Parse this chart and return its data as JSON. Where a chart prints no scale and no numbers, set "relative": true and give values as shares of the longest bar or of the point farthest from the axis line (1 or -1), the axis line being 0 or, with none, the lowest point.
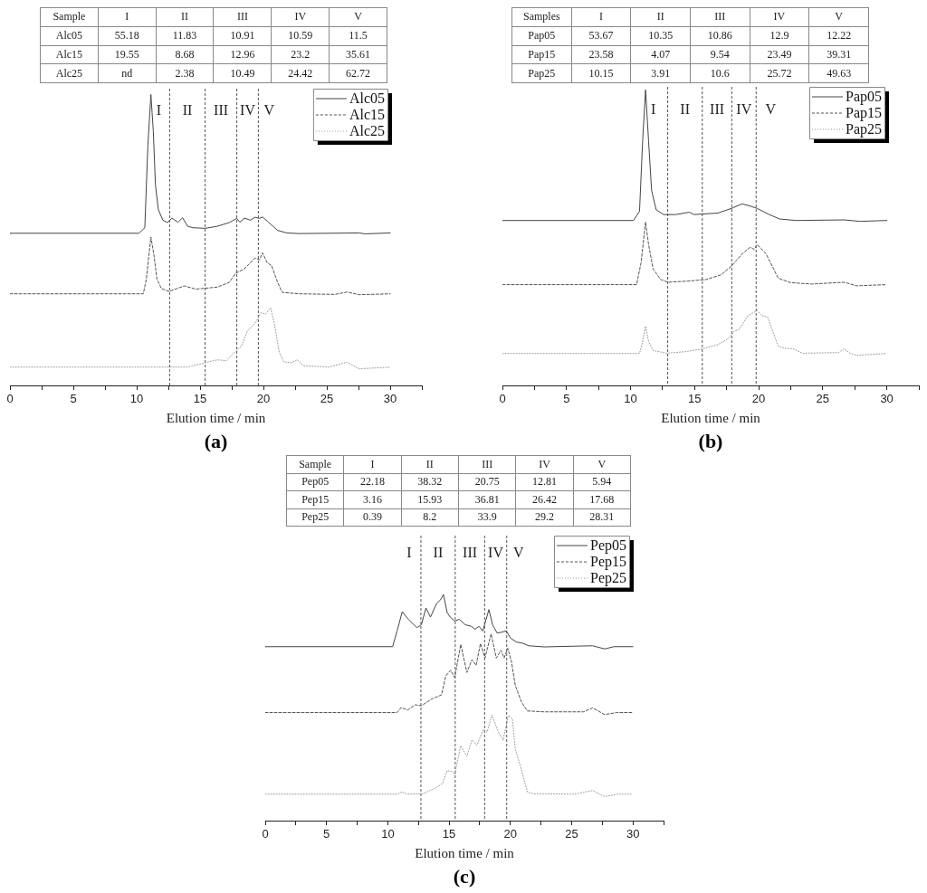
{
  "chart_data": [
    {
      "type": "other",
      "ylabel": "Sample",
      "categories": [
        "I",
        "II",
        "III",
        "IV",
        "V"
      ],
      "data_labels": true,
      "series": [
        {
          "name": "Alc05",
          "values": [
            55.18,
            11.83,
            10.91,
            10.59,
            11.5
          ]
        },
        {
          "name": "Alc15",
          "values": [
            19.55,
            8.68,
            12.96,
            23.2,
            35.61
          ]
        },
        {
          "name": "Alc25",
          "values": [
            null,
            2.38,
            10.49,
            24.42,
            62.72
          ],
          "value_labels": [
            "nd",
            "2.38",
            "10.49",
            "24.42",
            "62.72"
          ]
        }
      ]
    },
    {
      "type": "line",
      "title": "(a)",
      "xlabel": "Elution time / min",
      "relative": true,
      "tick_labels": "x",
      "legend": "top right",
      "xlim": [
        0,
        32.5
      ],
      "xticks": [
        0,
        {
          "value": 2.5,
          "label": null
        },
        5,
        {
          "value": 7.5,
          "label": null
        },
        10,
        {
          "value": 12.5,
          "label": null
        },
        15,
        {
          "value": 17.5,
          "label": null
        },
        20,
        {
          "value": 22.5,
          "label": null
        },
        25,
        {
          "value": 27.5,
          "label": null
        },
        30,
        {
          "value": 32.5,
          "label": null
        }
      ],
      "ref_lines": [
        {
          "axis": "x",
          "value": 12.6,
          "color": "#555555",
          "line_style": "dashed"
        },
        {
          "axis": "x",
          "value": 15.4,
          "color": "#555555",
          "line_style": "dashed"
        },
        {
          "axis": "x",
          "value": 17.9,
          "color": "#555555",
          "line_style": "dashed"
        },
        {
          "axis": "x",
          "value": 19.6,
          "color": "#555555",
          "line_style": "dashed"
        }
      ],
      "annotations": [
        "I",
        "II",
        "III",
        "IV",
        "V"
      ],
      "series": [
        {
          "name": "Alc05",
          "color": "#444444",
          "line_style": "solid",
          "x": [
            0,
            10.17,
            10.64,
            10.88,
            11.12,
            11.31,
            11.48,
            11.71,
            12.07,
            12.43,
            12.79,
            13.26,
            13.62,
            14.02,
            14.45,
            15.41,
            16.36,
            17.31,
            17.9,
            18.14,
            18.5,
            18.98,
            19.33,
            19.69,
            19.93,
            20.4,
            21.12,
            21.84,
            22.79,
            27.55,
            28.02,
            30
          ],
          "values": [
            0.523,
            0.523,
            0.542,
            0.823,
            1,
            0.875,
            0.688,
            0.604,
            0.568,
            0.56,
            0.575,
            0.561,
            0.576,
            0.547,
            0.542,
            0.54,
            0.547,
            0.56,
            0.574,
            0.561,
            0.575,
            0.568,
            0.578,
            0.574,
            0.579,
            0.561,
            0.533,
            0.524,
            0.522,
            0.524,
            0.521,
            0.524
          ]
        },
        {
          "name": "Alc15",
          "color": "#555555",
          "line_style": "dashed",
          "x": [
            0,
            10.52,
            10.76,
            11.12,
            11.36,
            11.6,
            11.95,
            12.55,
            13.74,
            14.69,
            16.36,
            17.31,
            17.79,
            18.5,
            19.33,
            19.69,
            19.93,
            20.29,
            20.64,
            21.12,
            21.48,
            22.79,
            25.64,
            26.6,
            27.55,
            30
          ],
          "values": [
            0.315,
            0.315,
            0.365,
            0.51,
            0.448,
            0.365,
            0.333,
            0.323,
            0.342,
            0.331,
            0.338,
            0.354,
            0.385,
            0.401,
            0.438,
            0.432,
            0.456,
            0.422,
            0.412,
            0.354,
            0.32,
            0.315,
            0.313,
            0.321,
            0.312,
            0.315
          ]
        },
        {
          "name": "Alc25",
          "color": "#999999",
          "line_style": "dotted",
          "x": [
            0,
            13.98,
            15.41,
            16.36,
            17.07,
            17.79,
            18.26,
            18.74,
            19.33,
            19.81,
            20.17,
            20.57,
            20.88,
            21.24,
            21.6,
            22.19,
            22.67,
            23.14,
            25.17,
            26.6,
            27.55,
            30
          ],
          "values": [
            0.063,
            0.063,
            0.078,
            0.088,
            0.085,
            0.117,
            0.135,
            0.188,
            0.213,
            0.25,
            0.245,
            0.266,
            0.208,
            0.115,
            0.081,
            0.078,
            0.088,
            0.068,
            0.063,
            0.08,
            0.057,
            0.063
          ]
        }
      ]
    },
    {
      "type": "other",
      "ylabel": "Samples",
      "categories": [
        "I",
        "II",
        "III",
        "IV",
        "V"
      ],
      "data_labels": true,
      "series": [
        {
          "name": "Pap05",
          "values": [
            53.67,
            10.35,
            10.86,
            12.9,
            12.22
          ]
        },
        {
          "name": "Pap15",
          "values": [
            23.58,
            4.07,
            9.54,
            23.49,
            39.31
          ]
        },
        {
          "name": "Pap25",
          "values": [
            10.15,
            3.91,
            10.6,
            25.72,
            49.63
          ]
        }
      ]
    },
    {
      "type": "line",
      "title": "(b)",
      "xlabel": "Elution time / min",
      "relative": true,
      "tick_labels": "x",
      "legend": "top right",
      "xlim": [
        0,
        32.5
      ],
      "xticks": [
        0,
        {
          "value": 2.5,
          "label": null
        },
        5,
        {
          "value": 7.5,
          "label": null
        },
        10,
        {
          "value": 12.5,
          "label": null
        },
        15,
        {
          "value": 17.5,
          "label": null
        },
        20,
        {
          "value": 22.5,
          "label": null
        },
        25,
        {
          "value": 27.5,
          "label": null
        },
        30,
        {
          "value": 32.5,
          "label": null
        }
      ],
      "ref_lines": [
        {
          "axis": "x",
          "value": 12.9,
          "color": "#555555",
          "line_style": "dashed"
        },
        {
          "axis": "x",
          "value": 15.6,
          "color": "#555555",
          "line_style": "dashed"
        },
        {
          "axis": "x",
          "value": 17.9,
          "color": "#555555",
          "line_style": "dashed"
        },
        {
          "axis": "x",
          "value": 19.8,
          "color": "#555555",
          "line_style": "dashed"
        }
      ],
      "annotations": [
        "I",
        "II",
        "III",
        "IV",
        "V"
      ],
      "series": [
        {
          "name": "Pap05",
          "color": "#444444",
          "line_style": "solid",
          "x": [
            0,
            10.23,
            10.7,
            10.94,
            11.17,
            11.41,
            11.64,
            12,
            12.58,
            13.53,
            14.59,
            14.94,
            16.82,
            17.88,
            18.7,
            19.17,
            19.88,
            20.82,
            21.64,
            22.94,
            26.7,
            27.88,
            30
          ],
          "values": [
            0.558,
            0.558,
            0.589,
            0.824,
            1,
            0.824,
            0.66,
            0.594,
            0.578,
            0.578,
            0.586,
            0.578,
            0.583,
            0.599,
            0.614,
            0.609,
            0.599,
            0.578,
            0.563,
            0.558,
            0.56,
            0.555,
            0.558
          ]
        },
        {
          "name": "Pap15",
          "color": "#555555",
          "line_style": "dashed",
          "x": [
            0,
            10.47,
            10.82,
            11.17,
            11.41,
            11.76,
            12.35,
            12.94,
            14.47,
            15.88,
            17.06,
            17.88,
            18.7,
            19.36,
            19.64,
            19.88,
            20.58,
            21.05,
            21.52,
            22.46,
            24.11,
            26.7,
            27.64,
            30
          ],
          "values": [
            0.341,
            0.341,
            0.415,
            0.553,
            0.476,
            0.394,
            0.358,
            0.349,
            0.353,
            0.358,
            0.374,
            0.404,
            0.445,
            0.468,
            0.46,
            0.476,
            0.445,
            0.404,
            0.363,
            0.348,
            0.343,
            0.349,
            0.337,
            0.341
          ]
        },
        {
          "name": "Pap25",
          "color": "#999999",
          "line_style": "dotted",
          "x": [
            0,
            10.7,
            10.94,
            11.17,
            11.41,
            11.76,
            12.82,
            14.23,
            15.53,
            16.82,
            17.64,
            18.11,
            18.47,
            19.17,
            19.88,
            20.23,
            20.7,
            21.05,
            21.52,
            22,
            22.7,
            23.41,
            26.23,
            26.65,
            27.17,
            27.64,
            30
          ],
          "values": [
            0.108,
            0.108,
            0.148,
            0.2,
            0.148,
            0.118,
            0.109,
            0.114,
            0.123,
            0.138,
            0.159,
            0.184,
            0.189,
            0.236,
            0.253,
            0.236,
            0.231,
            0.189,
            0.133,
            0.126,
            0.124,
            0.109,
            0.111,
            0.124,
            0.108,
            0.102,
            0.108
          ]
        }
      ]
    },
    {
      "type": "other",
      "ylabel": "Sample",
      "categories": [
        "I",
        "II",
        "III",
        "IV",
        "V"
      ],
      "data_labels": true,
      "series": [
        {
          "name": "Pep05",
          "values": [
            22.18,
            38.32,
            20.75,
            12.81,
            5.94
          ]
        },
        {
          "name": "Pep15",
          "values": [
            3.16,
            15.93,
            36.81,
            26.42,
            17.68
          ]
        },
        {
          "name": "Pep25",
          "values": [
            0.39,
            8.2,
            33.9,
            29.2,
            28.31
          ]
        }
      ]
    },
    {
      "type": "line",
      "title": "(c)",
      "xlabel": "Elution time / min",
      "relative": true,
      "tick_labels": "x",
      "legend": "top right",
      "xlim": [
        0,
        32.5
      ],
      "xticks": [
        0,
        {
          "value": 2.5,
          "label": null
        },
        5,
        {
          "value": 7.5,
          "label": null
        },
        10,
        {
          "value": 12.5,
          "label": null
        },
        15,
        {
          "value": 17.5,
          "label": null
        },
        20,
        {
          "value": 22.5,
          "label": null
        },
        25,
        {
          "value": 27.5,
          "label": null
        },
        30,
        {
          "value": 32.5,
          "label": null
        }
      ],
      "ref_lines": [
        {
          "axis": "x",
          "value": 12.7,
          "color": "#555555",
          "line_style": "dashed"
        },
        {
          "axis": "x",
          "value": 15.5,
          "color": "#555555",
          "line_style": "dashed"
        },
        {
          "axis": "x",
          "value": 17.9,
          "color": "#555555",
          "line_style": "dashed"
        },
        {
          "axis": "x",
          "value": 19.7,
          "color": "#555555",
          "line_style": "dashed"
        }
      ],
      "annotations": [
        "I",
        "II",
        "III",
        "IV",
        "V"
      ],
      "series": [
        {
          "name": "Pep05",
          "color": "#444444",
          "line_style": "solid",
          "x": [
            0,
            10.39,
            10.76,
            11.18,
            11.62,
            12.37,
            12.74,
            13.11,
            13.48,
            13.98,
            14.3,
            14.54,
            14.84,
            15.09,
            15.46,
            15.83,
            16.32,
            16.82,
            17.12,
            17.43,
            17.75,
            18.25,
            18.55,
            18.92,
            19.29,
            19.66,
            20.03,
            20.52,
            20.9,
            21.51,
            22.75,
            26.71,
            27.7,
            28.44,
            30
          ],
          "values": [
            0.769,
            0.769,
            0.839,
            0.924,
            0.893,
            0.853,
            0.866,
            0.94,
            0.9,
            0.96,
            0.976,
            1,
            0.92,
            0.9,
            0.882,
            0.89,
            0.866,
            0.859,
            0.846,
            0.859,
            0.839,
            0.933,
            0.866,
            0.829,
            0.833,
            0.839,
            0.806,
            0.789,
            0.786,
            0.773,
            0.768,
            0.773,
            0.759,
            0.769,
            0.769
          ]
        },
        {
          "name": "Pep15",
          "color": "#555555",
          "line_style": "dashed",
          "x": [
            0,
            10.76,
            11.08,
            11.62,
            12.24,
            12.74,
            13.6,
            14.39,
            14.72,
            15.13,
            15.46,
            15.95,
            16.45,
            16.87,
            17.2,
            17.56,
            17.93,
            18.43,
            18.85,
            19.24,
            19.49,
            19.79,
            20.08,
            20.4,
            20.9,
            21.39,
            22.75,
            25.96,
            26.71,
            27.7,
            28.69,
            30
          ],
          "values": [
            0.478,
            0.478,
            0.5,
            0.489,
            0.512,
            0.508,
            0.538,
            0.556,
            0.639,
            0.665,
            0.632,
            0.779,
            0.655,
            0.712,
            0.686,
            0.783,
            0.719,
            0.826,
            0.719,
            0.753,
            0.719,
            0.762,
            0.706,
            0.598,
            0.525,
            0.485,
            0.481,
            0.481,
            0.498,
            0.469,
            0.478,
            0.478
          ]
        },
        {
          "name": "Pep25",
          "color": "#999999",
          "line_style": "dotted",
          "x": [
            0,
            10.76,
            11.2,
            11.54,
            12.86,
            13.85,
            14.47,
            14.84,
            15.21,
            15.46,
            15.95,
            16.45,
            16.87,
            17.26,
            17.8,
            18.1,
            18.5,
            18.99,
            19.41,
            19.84,
            20.16,
            20.4,
            20.77,
            21.39,
            21.89,
            25.22,
            26.71,
            27.7,
            28.69,
            30
          ],
          "values": [
            0.117,
            0.117,
            0.127,
            0.117,
            0.119,
            0.143,
            0.164,
            0.221,
            0.217,
            0.204,
            0.331,
            0.284,
            0.357,
            0.333,
            0.404,
            0.391,
            0.468,
            0.395,
            0.355,
            0.465,
            0.451,
            0.317,
            0.25,
            0.127,
            0.119,
            0.117,
            0.133,
            0.106,
            0.117,
            0.117
          ]
        }
      ]
    }
  ]
}
